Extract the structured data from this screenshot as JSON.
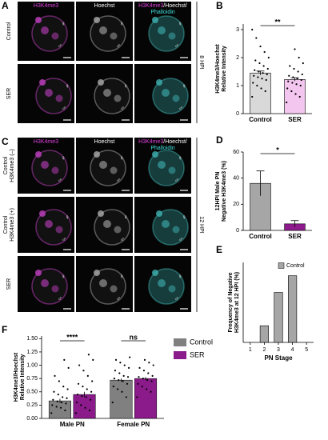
{
  "figure_a": {
    "label": "A",
    "channels": {
      "h3k4me3": "H3K4me3",
      "hoechst": "Hoechst",
      "merge_a": "H3K4me3",
      "merge_b": "/Hoechst/",
      "merge_c": "Phalloidin"
    },
    "rows": [
      [
        "Control"
      ],
      [
        "SER"
      ]
    ],
    "time": "8 HPI"
  },
  "figure_c": {
    "label": "C",
    "channels": {
      "h3k4me3": "H3K4me3",
      "hoechst": "Hoechst",
      "merge_a": "H3K4me3",
      "merge_b": "/Hoechst/",
      "merge_c": "Phalloidin"
    },
    "rows": [
      [
        "Control",
        "H3K4me3 (–)"
      ],
      [
        "Control",
        "H3K4me3 (+)"
      ],
      [
        "SER"
      ]
    ],
    "time": "12 HPI"
  },
  "pn_symbols": {
    "female": "♀",
    "male": "♂"
  },
  "chart_data": [
    {
      "type": "bar",
      "label": "B",
      "ylabel": [
        "H3K4me3/Hoechst",
        "Relative Intensity"
      ],
      "categories": [
        "Control",
        "SER"
      ],
      "values": [
        1.45,
        1.22
      ],
      "errors": [
        0.07,
        0.06
      ],
      "colors": [
        "#d9d9d9",
        "#f2c6ee"
      ],
      "points": [
        [
          0.6,
          0.8,
          0.9,
          1.0,
          1.1,
          1.2,
          1.25,
          1.3,
          1.35,
          1.4,
          1.45,
          1.5,
          1.55,
          1.6,
          1.7,
          1.8,
          1.9,
          2.0,
          2.2,
          2.4,
          2.7,
          3.0
        ],
        [
          0.4,
          0.6,
          0.7,
          0.8,
          0.9,
          1.0,
          1.05,
          1.1,
          1.15,
          1.2,
          1.25,
          1.3,
          1.35,
          1.4,
          1.5,
          1.6,
          1.7,
          1.8,
          2.0,
          2.3
        ]
      ],
      "ylim": [
        0,
        3.2
      ],
      "yticks": [
        0,
        1,
        2,
        3
      ],
      "significance": "**"
    },
    {
      "type": "bar",
      "label": "D",
      "ylabel": [
        "12HPI Male PN",
        "Negative H3K4me3 (%)"
      ],
      "categories": [
        "Control",
        "SER"
      ],
      "values": [
        36,
        5
      ],
      "errors": [
        9.5,
        2.5
      ],
      "colors": [
        "#a6a6a6",
        "#8e1a8e"
      ],
      "ylim": [
        0,
        60
      ],
      "yticks": [
        0,
        20,
        40,
        60
      ],
      "significance": "*"
    },
    {
      "type": "bar",
      "label": "E",
      "ylabel": [
        "Frequency of Negative",
        "H3K4me3 at 12 HPI (%)"
      ],
      "xlabel": "PN Stage",
      "x": [
        1,
        2,
        3,
        4,
        5
      ],
      "series": [
        {
          "name": "Control",
          "color": "#a6a6a6",
          "values": [
            0,
            12.5,
            37.5,
            50,
            0
          ]
        }
      ],
      "xlim": [
        0.5,
        5.5
      ],
      "xticks": [
        1,
        2,
        3,
        4,
        5
      ],
      "ylim": [
        0,
        60
      ]
    },
    {
      "type": "grouped_bar",
      "label": "F",
      "ylabel": [
        "H3K4me3/Hoechst",
        "Relative Intensity"
      ],
      "categories": [
        "Male PN",
        "Female PN"
      ],
      "series": [
        {
          "name": "Control",
          "color": "#808080",
          "values": [
            0.33,
            0.72
          ],
          "errors": [
            0.04,
            0.03
          ],
          "points": [
            [
              0.1,
              0.15,
              0.2,
              0.22,
              0.25,
              0.28,
              0.3,
              0.32,
              0.35,
              0.38,
              0.4,
              0.45,
              0.5,
              0.55,
              0.6,
              0.7,
              0.8,
              0.95,
              1.1
            ],
            [
              0.3,
              0.4,
              0.5,
              0.55,
              0.6,
              0.65,
              0.7,
              0.72,
              0.75,
              0.78,
              0.8,
              0.85,
              0.9,
              0.95,
              1.0,
              1.05,
              1.1,
              1.15
            ]
          ]
        },
        {
          "name": "SER",
          "color": "#8b1a8b",
          "values": [
            0.45,
            0.75
          ],
          "errors": [
            0.05,
            0.03
          ],
          "points": [
            [
              0.1,
              0.15,
              0.2,
              0.25,
              0.3,
              0.35,
              0.4,
              0.42,
              0.45,
              0.5,
              0.55,
              0.6,
              0.65,
              0.7,
              0.8,
              0.9,
              1.0,
              1.1,
              1.2
            ],
            [
              0.4,
              0.5,
              0.55,
              0.6,
              0.65,
              0.7,
              0.72,
              0.75,
              0.78,
              0.8,
              0.85,
              0.9,
              0.95,
              1.0,
              1.05,
              1.1
            ]
          ]
        }
      ],
      "ylim": [
        0,
        1.55
      ],
      "yticks": [
        {
          "value": 0,
          "label": "0.00"
        },
        {
          "value": 0.25,
          "label": "0.25"
        },
        {
          "value": 0.5,
          "label": "0.50"
        },
        {
          "value": 0.75,
          "label": "0.75"
        },
        {
          "value": 1,
          "label": "1.00"
        },
        {
          "value": 1.25,
          "label": "1.25"
        },
        {
          "value": 1.5,
          "label": "1.50"
        }
      ],
      "significance": [
        "****",
        "ns"
      ]
    }
  ]
}
